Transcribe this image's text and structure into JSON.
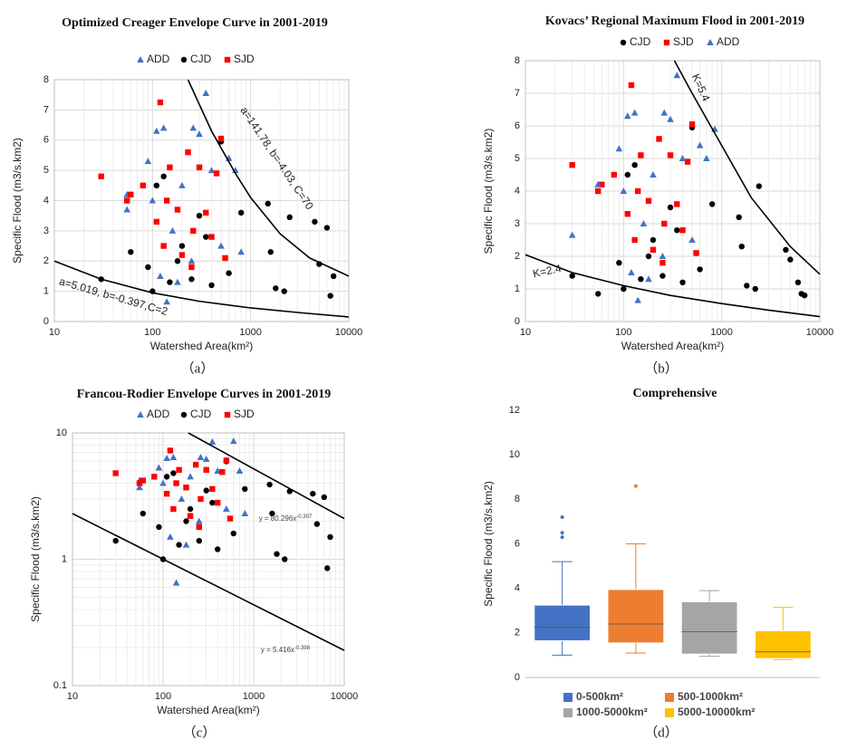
{
  "chart_data": [
    {
      "type": "scatter",
      "title": "Optimized Creager Envelope Curve in 2001-2019",
      "caption": "（a）",
      "xlabel": "Watershed Area(km²)",
      "ylabel": "Specific Flood (m3/s.km2)",
      "xlog": true,
      "xlim": [
        10,
        10000
      ],
      "xticks": [
        10,
        100,
        1000,
        10000
      ],
      "ylim": [
        0,
        8
      ],
      "yticks": [
        0,
        1,
        2,
        3,
        4,
        5,
        6,
        7,
        8
      ],
      "grid": true,
      "series": [
        {
          "name": "ADD",
          "color": "#4472c4",
          "marker": "triangle",
          "x": [
            55,
            55,
            90,
            100,
            110,
            130,
            140,
            160,
            200,
            260,
            300,
            350,
            400,
            500,
            600,
            700,
            800,
            120,
            250,
            180
          ],
          "values": [
            3.7,
            4.2,
            5.3,
            4.0,
            6.3,
            6.4,
            0.65,
            3.0,
            4.5,
            6.4,
            6.2,
            7.55,
            5.0,
            2.5,
            5.4,
            5.0,
            2.3,
            1.5,
            2.0,
            1.3
          ]
        },
        {
          "name": "CJD",
          "color": "#000000",
          "marker": "circle",
          "x": [
            30,
            60,
            90,
            100,
            110,
            130,
            150,
            200,
            250,
            300,
            400,
            500,
            600,
            800,
            1500,
            1800,
            2200,
            2500,
            4500,
            5000,
            6000,
            6500,
            7000,
            1600,
            180,
            350
          ],
          "values": [
            1.4,
            2.3,
            1.8,
            1.0,
            4.5,
            4.8,
            1.3,
            2.5,
            1.4,
            3.5,
            1.2,
            5.95,
            1.6,
            3.6,
            3.9,
            1.1,
            1.0,
            3.45,
            3.3,
            1.9,
            3.1,
            0.85,
            1.5,
            2.3,
            2.0,
            2.8
          ]
        },
        {
          "name": "SJD",
          "color": "#ff0000",
          "marker": "square",
          "x": [
            30,
            55,
            60,
            80,
            110,
            120,
            130,
            140,
            150,
            180,
            200,
            230,
            260,
            300,
            350,
            400,
            450,
            500,
            550,
            250
          ],
          "values": [
            4.8,
            4.0,
            4.2,
            4.5,
            3.3,
            7.25,
            2.5,
            4.0,
            5.1,
            3.7,
            2.2,
            5.6,
            3.0,
            5.1,
            3.6,
            2.8,
            4.9,
            6.05,
            2.1,
            1.8
          ]
        }
      ],
      "curves": [
        {
          "x": [
            230,
            400,
            700,
            1000,
            2000,
            4000,
            10000
          ],
          "values": [
            8,
            6.3,
            4.9,
            4.1,
            2.9,
            2.1,
            1.5
          ]
        },
        {
          "x": [
            10,
            30,
            100,
            300,
            1000,
            3000,
            10000
          ],
          "values": [
            2.0,
            1.4,
            0.95,
            0.67,
            0.45,
            0.3,
            0.15
          ]
        }
      ],
      "annotations": [
        "a=141.78, b=-4.03, C=70",
        "a=5.019, b=-0.397,C=2"
      ]
    },
    {
      "type": "scatter",
      "title": "Kovacs’ Regional Maximum Flood in 2001-2019",
      "caption": "（b）",
      "xlabel": "Watershed Area(km²)",
      "ylabel": "Specific Flood (m3/s.km2)",
      "xlog": true,
      "xlim": [
        10,
        10000
      ],
      "xticks": [
        10,
        100,
        1000,
        10000
      ],
      "ylim": [
        0,
        8
      ],
      "yticks": [
        0,
        1,
        2,
        3,
        4,
        5,
        6,
        7,
        8
      ],
      "grid": true,
      "series": [
        {
          "name": "CJD",
          "color": "#000000",
          "marker": "circle",
          "x": [
            30,
            55,
            90,
            100,
            110,
            130,
            150,
            200,
            250,
            300,
            400,
            500,
            600,
            800,
            1500,
            1800,
            2200,
            2400,
            4500,
            5000,
            6000,
            6500,
            7000,
            1600,
            180,
            350
          ],
          "values": [
            1.4,
            0.85,
            1.8,
            1.0,
            4.5,
            4.8,
            1.3,
            2.5,
            1.4,
            3.5,
            1.2,
            5.95,
            1.6,
            3.6,
            3.2,
            1.1,
            1.0,
            4.15,
            2.2,
            1.9,
            1.2,
            0.85,
            0.8,
            2.3,
            2.0,
            2.8
          ]
        },
        {
          "name": "SJD",
          "color": "#ff0000",
          "marker": "square",
          "x": [
            30,
            55,
            60,
            80,
            110,
            120,
            130,
            140,
            150,
            180,
            200,
            230,
            260,
            300,
            350,
            400,
            450,
            500,
            550,
            250
          ],
          "values": [
            4.8,
            4.0,
            4.2,
            4.5,
            3.3,
            7.25,
            2.5,
            4.0,
            5.1,
            3.7,
            2.2,
            5.6,
            3.0,
            5.1,
            3.6,
            2.8,
            4.9,
            6.05,
            2.1,
            1.8
          ]
        },
        {
          "name": "ADD",
          "color": "#4472c4",
          "marker": "triangle",
          "x": [
            30,
            55,
            90,
            100,
            110,
            130,
            140,
            160,
            200,
            260,
            300,
            350,
            400,
            500,
            600,
            700,
            850,
            120,
            250,
            180
          ],
          "values": [
            2.65,
            4.2,
            5.3,
            4.0,
            6.3,
            6.4,
            0.65,
            3.0,
            4.5,
            6.4,
            6.2,
            7.55,
            5.0,
            2.5,
            5.4,
            5.0,
            5.9,
            1.5,
            2.0,
            1.3
          ]
        }
      ],
      "curves": [
        {
          "x": [
            330,
            500,
            1000,
            2000,
            5000,
            10000
          ],
          "values": [
            8,
            7,
            5.4,
            3.8,
            2.3,
            1.45
          ]
        },
        {
          "x": [
            10,
            30,
            100,
            300,
            1000,
            3000,
            10000
          ],
          "values": [
            2.05,
            1.5,
            1.1,
            0.8,
            0.55,
            0.35,
            0.15
          ]
        }
      ],
      "annotations": [
        "K=5.4",
        "K=2.4"
      ]
    },
    {
      "type": "scatter",
      "title": "Francou-Rodier Envelope Curves in 2001-2019",
      "caption": "（c）",
      "xlabel": "Watershed Area(km²)",
      "ylabel": "Specific Flood (m3/s.km2)",
      "xlog": true,
      "ylog": true,
      "xlim": [
        10,
        10000
      ],
      "xticks": [
        10,
        100,
        1000,
        10000
      ],
      "ylim": [
        0.1,
        10
      ],
      "yticks": [
        0.1,
        1,
        10
      ],
      "grid": true,
      "series": [
        {
          "name": "ADD",
          "color": "#4472c4",
          "marker": "triangle",
          "x": [
            55,
            55,
            90,
            100,
            110,
            130,
            140,
            160,
            200,
            260,
            300,
            350,
            400,
            500,
            600,
            700,
            800,
            120,
            250,
            180
          ],
          "values": [
            3.7,
            4.2,
            5.3,
            4.0,
            6.3,
            6.4,
            0.65,
            3.0,
            4.5,
            6.4,
            6.2,
            8.5,
            5.0,
            2.5,
            8.6,
            5.0,
            2.3,
            1.5,
            2.0,
            1.3
          ]
        },
        {
          "name": "CJD",
          "color": "#000000",
          "marker": "circle",
          "x": [
            30,
            60,
            90,
            100,
            110,
            130,
            150,
            200,
            250,
            300,
            400,
            500,
            600,
            800,
            1500,
            1800,
            2200,
            2500,
            4500,
            5000,
            6000,
            6500,
            7000,
            1600,
            180,
            350
          ],
          "values": [
            1.4,
            2.3,
            1.8,
            1.0,
            4.5,
            4.8,
            1.3,
            2.5,
            1.4,
            3.5,
            1.2,
            5.95,
            1.6,
            3.6,
            3.9,
            1.1,
            1.0,
            3.45,
            3.3,
            1.9,
            3.1,
            0.85,
            1.5,
            2.3,
            2.0,
            2.8
          ]
        },
        {
          "name": "SJD",
          "color": "#ff0000",
          "marker": "square",
          "x": [
            30,
            55,
            60,
            80,
            110,
            120,
            130,
            140,
            150,
            180,
            200,
            230,
            260,
            300,
            350,
            400,
            450,
            500,
            550,
            250
          ],
          "values": [
            4.8,
            4.0,
            4.2,
            4.5,
            3.3,
            7.25,
            2.5,
            4.0,
            5.1,
            3.7,
            2.2,
            5.6,
            3.0,
            5.1,
            3.6,
            2.8,
            4.9,
            6.05,
            2.1,
            1.8
          ]
        }
      ],
      "curves": [
        {
          "x": [
            190,
            10000
          ],
          "values": [
            10,
            2.1
          ]
        },
        {
          "x": [
            10,
            10000
          ],
          "values": [
            2.3,
            0.19
          ]
        }
      ],
      "annotations": [
        {
          "text": "y = 80.296x",
          "sup": "-0.397"
        },
        {
          "text": "y = 5.416x",
          "sup": "-0.398"
        }
      ]
    },
    {
      "type": "box",
      "title": "Comprehensive",
      "caption": "（d）",
      "ylabel": "Specific Flood (m3/s.km2)",
      "ylim": [
        0,
        12
      ],
      "yticks": [
        0,
        2,
        4,
        6,
        8,
        10,
        12
      ],
      "categories": [
        "0-500km²",
        "500-1000km²",
        "1000-5000km²",
        "5000-10000km²"
      ],
      "colors": [
        "#4472c4",
        "#ed7d31",
        "#a5a5a5",
        "#ffc000"
      ],
      "min": [
        1.0,
        1.1,
        0.95,
        0.8
      ],
      "q1": [
        1.65,
        1.55,
        1.05,
        0.85
      ],
      "median": [
        2.25,
        2.4,
        2.05,
        1.15
      ],
      "q3": [
        3.25,
        3.95,
        3.4,
        2.1
      ],
      "max": [
        5.2,
        6.0,
        3.9,
        3.15
      ],
      "outliers": [
        [
          6.3,
          6.5,
          7.2
        ],
        [
          8.6
        ],
        [],
        []
      ]
    }
  ]
}
